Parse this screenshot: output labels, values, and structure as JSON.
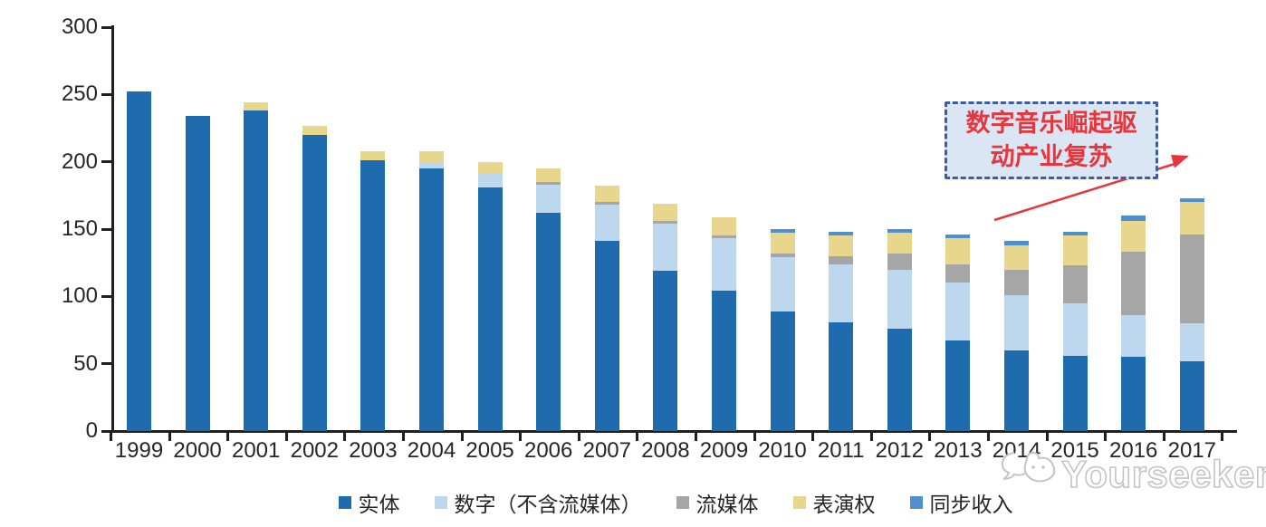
{
  "chart_data": {
    "type": "bar",
    "stacked": true,
    "title": "",
    "xlabel": "",
    "ylabel": "",
    "ylim": [
      0,
      300
    ],
    "y_ticks": [
      0,
      50,
      100,
      150,
      200,
      250,
      300
    ],
    "grid": false,
    "legend_position": "bottom",
    "categories": [
      "1999",
      "2000",
      "2001",
      "2002",
      "2003",
      "2004",
      "2005",
      "2006",
      "2007",
      "2008",
      "2009",
      "2010",
      "2011",
      "2012",
      "2013",
      "2014",
      "2015",
      "2016",
      "2017"
    ],
    "series": [
      {
        "name": "实体",
        "color": "#1e6bad",
        "values": [
          252,
          234,
          238,
          220,
          201,
          195,
          181,
          162,
          141,
          119,
          104,
          89,
          81,
          76,
          67,
          60,
          56,
          55,
          52
        ]
      },
      {
        "name": "数字（不含流媒体）",
        "color": "#bdd7ee",
        "values": [
          0,
          0,
          0,
          0,
          0,
          4,
          11,
          21,
          27,
          35,
          39,
          40,
          43,
          44,
          43,
          41,
          39,
          31,
          28
        ]
      },
      {
        "name": "流媒体",
        "color": "#a6a6a6",
        "values": [
          0,
          0,
          0,
          0,
          0,
          0,
          0,
          2,
          2,
          2,
          2,
          3,
          6,
          12,
          14,
          19,
          28,
          47,
          66
        ]
      },
      {
        "name": "表演权",
        "color": "#e9d68d",
        "values": [
          0,
          0,
          6,
          7,
          7,
          9,
          8,
          10,
          12,
          13,
          14,
          15,
          15,
          15,
          19,
          18,
          22,
          23,
          24
        ]
      },
      {
        "name": "同步收入",
        "color": "#4e8fce",
        "values": [
          0,
          0,
          0,
          0,
          0,
          0,
          0,
          0,
          0,
          0,
          0,
          3,
          3,
          3,
          3,
          3,
          3,
          4,
          3
        ]
      }
    ]
  },
  "annotation": {
    "line1": "数字音乐崛起驱",
    "line2": "动产业复苏",
    "full_text": "数字音乐崛起驱动产业复苏",
    "border_color": "#3f5d9c",
    "fill_color": "#dae6f3",
    "text_color": "#e8353b"
  },
  "arrow": {
    "color": "#e8353b"
  },
  "watermark": {
    "text": "Yourseeker",
    "color": "#c4c4c4"
  }
}
